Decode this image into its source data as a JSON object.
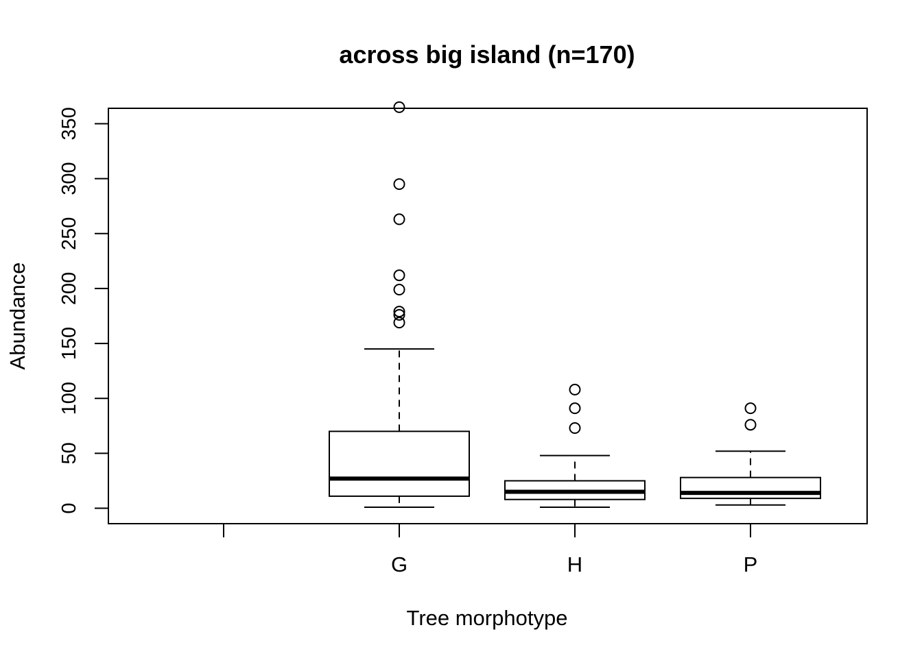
{
  "chart_data": {
    "type": "boxplot",
    "title": "across big island (n=170)",
    "xlabel": "Tree morphotype",
    "ylabel": "Abundance",
    "categories": [
      "",
      "G",
      "H",
      "P"
    ],
    "ylim": [
      -14,
      364
    ],
    "yticks": [
      0,
      50,
      100,
      150,
      200,
      250,
      300,
      350
    ],
    "grid": false,
    "legend": "none",
    "series": [
      {
        "category": "G",
        "whisker_low": 1,
        "q1": 11,
        "median": 27,
        "q3": 70,
        "whisker_high": 145,
        "outliers": [
          365,
          295,
          263,
          212,
          199,
          179,
          176,
          169
        ]
      },
      {
        "category": "H",
        "whisker_low": 1,
        "q1": 8,
        "median": 15,
        "q3": 25,
        "whisker_high": 48,
        "outliers": [
          108,
          91,
          73
        ]
      },
      {
        "category": "P",
        "whisker_low": 3,
        "q1": 9,
        "median": 14,
        "q3": 28,
        "whisker_high": 52,
        "outliers": [
          91,
          76
        ]
      }
    ]
  }
}
